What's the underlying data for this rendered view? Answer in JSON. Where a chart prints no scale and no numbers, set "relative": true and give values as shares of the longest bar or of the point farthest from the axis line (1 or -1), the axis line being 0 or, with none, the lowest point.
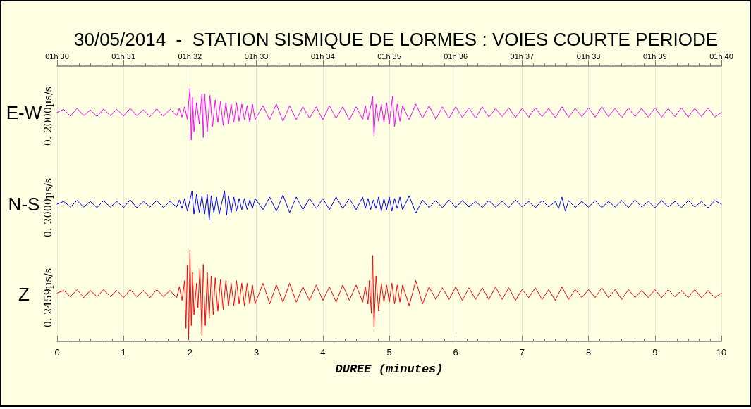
{
  "chart_data": [
    {
      "type": "line",
      "title": "30/05/2014  -  STATION SISMIQUE DE LORMES : VOIES COURTE PERIODE",
      "ylabel": "0. 2000µs/s",
      "relative": true,
      "marker": "none",
      "grid": "x",
      "tick_labels": false,
      "xlim": [
        0,
        10
      ],
      "xticks": [
        0,
        1,
        2,
        3,
        4,
        5,
        6,
        7,
        8,
        9,
        10
      ],
      "x2lim": [
        "2014-05-30T01:30",
        "2014-05-30T01:40"
      ],
      "x2ticks": [
        {
          "value": "2014-05-30T01:30",
          "label": "01h 30"
        },
        {
          "value": "2014-05-30T01:31",
          "label": "01h 31"
        },
        {
          "value": "2014-05-30T01:32",
          "label": "01h 32"
        },
        {
          "value": "2014-05-30T01:33",
          "label": "01h 33"
        },
        {
          "value": "2014-05-30T01:34",
          "label": "01h 34"
        },
        {
          "value": "2014-05-30T01:35",
          "label": "01h 35"
        },
        {
          "value": "2014-05-30T01:36",
          "label": "01h 36"
        },
        {
          "value": "2014-05-30T01:37",
          "label": "01h 37"
        },
        {
          "value": "2014-05-30T01:38",
          "label": "01h 38"
        },
        {
          "value": "2014-05-30T01:39",
          "label": "01h 39"
        },
        {
          "value": "2014-05-30T01:40",
          "label": "01h 40"
        }
      ],
      "x": [
        0,
        0.1,
        0.2,
        0.3,
        0.4,
        0.5,
        0.6,
        0.7,
        0.8,
        0.9,
        1,
        1.1,
        1.2,
        1.3,
        1.4,
        1.5,
        1.6,
        1.7,
        1.8,
        1.84,
        1.88,
        1.92,
        1.96,
        2,
        2.02,
        2.04,
        2.06,
        2.1,
        2.14,
        2.18,
        2.2,
        2.22,
        2.26,
        2.3,
        2.34,
        2.38,
        2.42,
        2.46,
        2.5,
        2.54,
        2.58,
        2.62,
        2.66,
        2.7,
        2.74,
        2.78,
        2.82,
        2.86,
        2.9,
        2.94,
        2.98,
        3.1,
        3.2,
        3.3,
        3.4,
        3.5,
        3.6,
        3.7,
        3.8,
        3.9,
        4,
        4.1,
        4.2,
        4.3,
        4.4,
        4.5,
        4.6,
        4.64,
        4.68,
        4.75,
        4.77,
        4.8,
        4.84,
        4.88,
        4.92,
        4.96,
        5,
        5.05,
        5.08,
        5.12,
        5.16,
        5.2,
        5.3,
        5.4,
        5.5,
        5.6,
        5.7,
        5.8,
        5.9,
        6,
        6.1,
        6.2,
        6.3,
        6.4,
        6.5,
        6.6,
        6.7,
        6.8,
        6.9,
        7,
        7.1,
        7.2,
        7.3,
        7.4,
        7.5,
        7.6,
        7.7,
        7.8,
        7.9,
        8,
        8.1,
        8.2,
        8.3,
        8.4,
        8.5,
        8.6,
        8.7,
        8.8,
        8.9,
        9,
        9.1,
        9.2,
        9.3,
        9.4,
        9.5,
        9.6,
        9.7,
        9.8,
        9.9,
        10
      ],
      "series": [
        {
          "name": "E-W",
          "color": "#ff00ff",
          "values": [
            0.53,
            0.59,
            0.46,
            0.61,
            0.47,
            0.58,
            0.45,
            0.6,
            0.47,
            0.59,
            0.46,
            0.61,
            0.47,
            0.58,
            0.45,
            0.6,
            0.46,
            0.59,
            0.47,
            0.61,
            0.44,
            0.64,
            0.4,
            1,
            0,
            0.82,
            0.16,
            0.72,
            0.31,
            0.89,
            0.05,
            0.89,
            0.16,
            0.86,
            0.26,
            0.77,
            0.34,
            0.74,
            0.28,
            0.72,
            0.31,
            0.69,
            0.34,
            0.72,
            0.36,
            0.69,
            0.39,
            0.66,
            0.34,
            0.69,
            0.39,
            0.66,
            0.39,
            0.69,
            0.36,
            0.66,
            0.39,
            0.64,
            0.42,
            0.64,
            0.39,
            0.66,
            0.42,
            0.64,
            0.39,
            0.64,
            0.4,
            0.66,
            0.39,
            0.84,
            0.09,
            0.69,
            0.36,
            0.69,
            0.34,
            0.72,
            0.31,
            0.84,
            0.26,
            0.69,
            0.36,
            0.66,
            0.39,
            0.69,
            0.42,
            0.66,
            0.4,
            0.64,
            0.42,
            0.64,
            0.43,
            0.62,
            0.42,
            0.64,
            0.44,
            0.61,
            0.45,
            0.62,
            0.43,
            0.61,
            0.44,
            0.62,
            0.45,
            0.61,
            0.43,
            0.64,
            0.44,
            0.61,
            0.45,
            0.62,
            0.44,
            0.64,
            0.45,
            0.61,
            0.43,
            0.62,
            0.45,
            0.61,
            0.44,
            0.62,
            0.44,
            0.61,
            0.45,
            0.62,
            0.44,
            0.61,
            0.45,
            0.62,
            0.44,
            0.53
          ]
        }
      ]
    },
    {
      "type": "line",
      "ylabel": "0. 2000µs/s",
      "relative": true,
      "marker": "none",
      "grid": "x",
      "tick_labels": false,
      "xlim": [
        0,
        10
      ],
      "xticks": [
        0,
        1,
        2,
        3,
        4,
        5,
        6,
        7,
        8,
        9,
        10
      ],
      "x": [
        0,
        0.1,
        0.2,
        0.3,
        0.4,
        0.5,
        0.6,
        0.7,
        0.8,
        0.9,
        1,
        1.1,
        1.2,
        1.3,
        1.4,
        1.5,
        1.6,
        1.7,
        1.8,
        1.84,
        1.88,
        1.92,
        1.96,
        2.03,
        2.06,
        2.1,
        2.14,
        2.18,
        2.22,
        2.26,
        2.29,
        2.32,
        2.36,
        2.4,
        2.44,
        2.52,
        2.55,
        2.58,
        2.62,
        2.66,
        2.7,
        2.74,
        2.78,
        2.82,
        2.86,
        2.9,
        2.94,
        2.98,
        3.1,
        3.2,
        3.3,
        3.4,
        3.5,
        3.6,
        3.7,
        3.8,
        3.9,
        4,
        4.1,
        4.2,
        4.3,
        4.4,
        4.5,
        4.6,
        4.64,
        4.68,
        4.72,
        4.76,
        4.8,
        4.84,
        4.88,
        4.92,
        4.96,
        5,
        5.04,
        5.08,
        5.12,
        5.16,
        5.2,
        5.3,
        5.4,
        5.5,
        5.6,
        5.7,
        5.8,
        5.9,
        6,
        6.1,
        6.2,
        6.3,
        6.4,
        6.5,
        6.6,
        6.7,
        6.8,
        6.9,
        7,
        7.1,
        7.2,
        7.3,
        7.4,
        7.5,
        7.55,
        7.6,
        7.65,
        7.7,
        7.8,
        7.9,
        8,
        8.1,
        8.2,
        8.3,
        8.4,
        8.5,
        8.6,
        8.7,
        8.8,
        8.9,
        9,
        9.1,
        9.2,
        9.3,
        9.4,
        9.5,
        9.6,
        9.7,
        9.8,
        9.9,
        10
      ],
      "series": [
        {
          "name": "N-S",
          "color": "#0000ff",
          "values": [
            0.55,
            0.64,
            0.45,
            0.67,
            0.45,
            0.64,
            0.43,
            0.67,
            0.45,
            0.64,
            0.43,
            0.69,
            0.43,
            0.64,
            0.45,
            0.67,
            0.43,
            0.64,
            0.45,
            0.69,
            0.4,
            0.74,
            0.31,
            0.98,
            0.21,
            0.88,
            0.26,
            0.83,
            0.21,
            0.88,
            0,
            0.83,
            0.26,
            0.79,
            0.21,
            1,
            0.17,
            0.83,
            0.26,
            0.79,
            0.31,
            0.74,
            0.36,
            0.74,
            0.36,
            0.69,
            0.4,
            0.74,
            0.36,
            0.79,
            0.31,
            0.86,
            0.26,
            0.79,
            0.36,
            0.74,
            0.4,
            0.74,
            0.36,
            0.79,
            0.4,
            0.74,
            0.36,
            0.79,
            0.4,
            0.74,
            0.36,
            0.69,
            0.4,
            0.79,
            0.31,
            0.74,
            0.36,
            0.79,
            0.31,
            0.74,
            0.4,
            0.79,
            0.36,
            0.83,
            0.24,
            0.69,
            0.43,
            0.67,
            0.43,
            0.69,
            0.43,
            0.67,
            0.45,
            0.64,
            0.43,
            0.67,
            0.45,
            0.64,
            0.43,
            0.69,
            0.45,
            0.64,
            0.43,
            0.67,
            0.45,
            0.64,
            0.4,
            0.79,
            0.31,
            0.67,
            0.43,
            0.64,
            0.45,
            0.67,
            0.43,
            0.64,
            0.45,
            0.67,
            0.43,
            0.69,
            0.45,
            0.64,
            0.43,
            0.67,
            0.45,
            0.64,
            0.43,
            0.67,
            0.45,
            0.64,
            0.43,
            0.67,
            0.55
          ]
        }
      ]
    },
    {
      "type": "line",
      "ylabel": "0. 2459µs/s",
      "xlabel": "DUREE (minutes)",
      "relative": true,
      "marker": "none",
      "grid": "x",
      "tick_labels": "x",
      "xlim": [
        0,
        10
      ],
      "xticks": [
        0,
        1,
        2,
        3,
        4,
        5,
        6,
        7,
        8,
        9,
        10
      ],
      "x": [
        0,
        0.1,
        0.2,
        0.3,
        0.4,
        0.5,
        0.6,
        0.7,
        0.8,
        0.9,
        1,
        1.1,
        1.2,
        1.3,
        1.4,
        1.5,
        1.6,
        1.7,
        1.8,
        1.84,
        1.88,
        1.92,
        1.94,
        1.96,
        1.98,
        2,
        2.02,
        2.04,
        2.06,
        2.1,
        2.12,
        2.15,
        2.18,
        2.2,
        2.23,
        2.26,
        2.29,
        2.32,
        2.35,
        2.38,
        2.42,
        2.46,
        2.5,
        2.54,
        2.58,
        2.62,
        2.66,
        2.7,
        2.74,
        2.78,
        2.82,
        2.86,
        2.9,
        2.94,
        2.98,
        3.1,
        3.2,
        3.3,
        3.4,
        3.5,
        3.6,
        3.7,
        3.8,
        3.9,
        4,
        4.1,
        4.2,
        4.3,
        4.4,
        4.5,
        4.6,
        4.64,
        4.68,
        4.7,
        4.73,
        4.75,
        4.77,
        4.8,
        4.84,
        4.88,
        4.92,
        4.96,
        5,
        5.04,
        5.08,
        5.12,
        5.16,
        5.2,
        5.3,
        5.4,
        5.5,
        5.6,
        5.7,
        5.8,
        5.9,
        6,
        6.1,
        6.2,
        6.3,
        6.4,
        6.5,
        6.6,
        6.7,
        6.8,
        6.9,
        7,
        7.1,
        7.2,
        7.3,
        7.4,
        7.5,
        7.6,
        7.7,
        7.8,
        7.9,
        8,
        8.1,
        8.2,
        8.3,
        8.4,
        8.5,
        8.6,
        8.7,
        8.8,
        8.9,
        9,
        9.1,
        9.2,
        9.3,
        9.4,
        9.5,
        9.6,
        9.7,
        9.8,
        9.9,
        10
      ],
      "series": [
        {
          "name": "Z",
          "color": "#ff0000",
          "values": [
            0.52,
            0.55,
            0.48,
            0.56,
            0.47,
            0.55,
            0.48,
            0.56,
            0.48,
            0.55,
            0.47,
            0.56,
            0.48,
            0.55,
            0.47,
            0.56,
            0.48,
            0.55,
            0.47,
            0.59,
            0.44,
            0.66,
            0.13,
            0.83,
            0,
            1,
            0.16,
            0.75,
            0.28,
            0.63,
            0.36,
            0.8,
            0.05,
            0.84,
            0.16,
            0.75,
            0.24,
            0.71,
            0.28,
            0.69,
            0.32,
            0.67,
            0.34,
            0.66,
            0.38,
            0.63,
            0.38,
            0.66,
            0.4,
            0.63,
            0.38,
            0.63,
            0.4,
            0.61,
            0.4,
            0.63,
            0.4,
            0.61,
            0.42,
            0.63,
            0.42,
            0.59,
            0.44,
            0.61,
            0.44,
            0.59,
            0.42,
            0.61,
            0.44,
            0.61,
            0.42,
            0.59,
            0.4,
            0.66,
            0.3,
            0.94,
            0.14,
            0.71,
            0.32,
            0.63,
            0.42,
            0.61,
            0.42,
            0.63,
            0.4,
            0.61,
            0.42,
            0.61,
            0.38,
            0.66,
            0.4,
            0.59,
            0.45,
            0.58,
            0.45,
            0.59,
            0.44,
            0.58,
            0.45,
            0.58,
            0.45,
            0.59,
            0.45,
            0.58,
            0.44,
            0.56,
            0.47,
            0.58,
            0.45,
            0.56,
            0.44,
            0.59,
            0.45,
            0.56,
            0.47,
            0.56,
            0.47,
            0.58,
            0.47,
            0.56,
            0.45,
            0.56,
            0.47,
            0.55,
            0.47,
            0.56,
            0.47,
            0.56,
            0.48,
            0.55,
            0.47,
            0.56,
            0.47,
            0.55,
            0.47,
            0.52
          ]
        }
      ]
    }
  ]
}
